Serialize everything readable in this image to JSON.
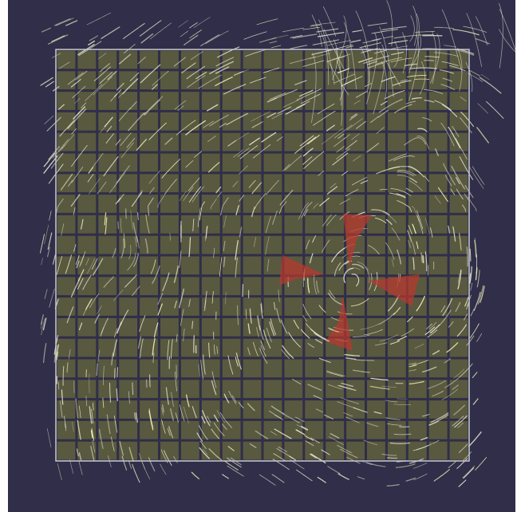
{
  "scene": {
    "description_free": true,
    "background_color": "#302e48",
    "tile_color": "#595940",
    "grid_line_color": "#2c2a45",
    "frame_color": "#c9c9d4",
    "streamline_color": "#e6e6d0",
    "streamline_highlight_color": "#f4f4b8",
    "blade_color": "#b8372e",
    "grid_rows": 20,
    "grid_cols": 20
  }
}
